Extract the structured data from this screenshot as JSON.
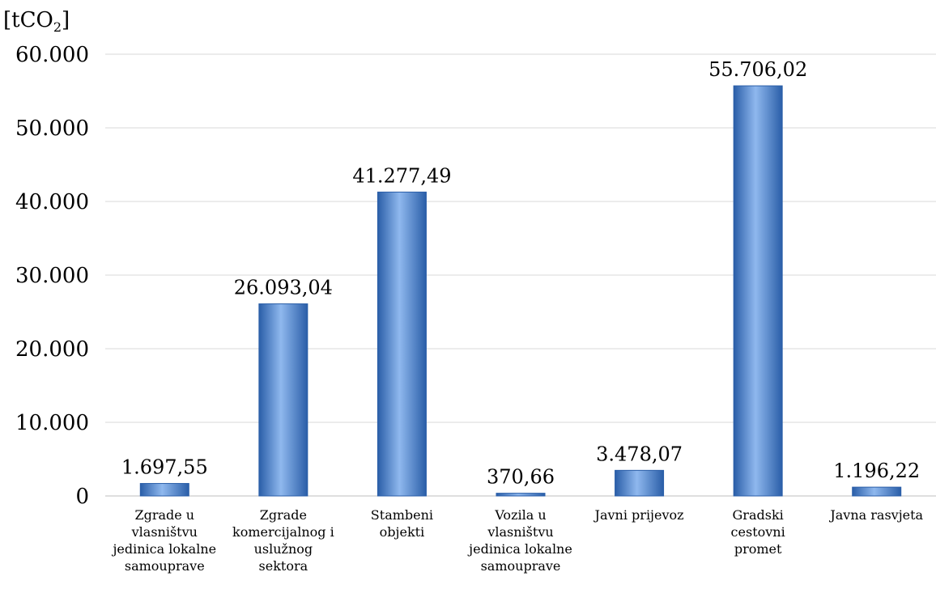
{
  "chart_data": {
    "type": "bar",
    "unit_label": {
      "prefix": "[tCO",
      "sub": "2",
      "suffix": "]"
    },
    "categories": [
      [
        "Zgrade u",
        "vlasništvu",
        "jedinica lokalne",
        "samouprave"
      ],
      [
        "Zgrade",
        "komercijalnog i",
        "uslužnog",
        "sektora"
      ],
      [
        "Stambeni",
        "objekti"
      ],
      [
        "Vozila u",
        "vlasništvu",
        "jedinica lokalne",
        "samouprave"
      ],
      [
        "Javni prijevoz"
      ],
      [
        "Gradski",
        "cestovni",
        "promet"
      ],
      [
        "Javna rasvjeta"
      ]
    ],
    "values": [
      1697.55,
      26093.04,
      41277.49,
      370.66,
      3478.07,
      55706.02,
      1196.22
    ],
    "data_labels": [
      "1.697,55",
      "26.093,04",
      "41.277,49",
      "370,66",
      "3.478,07",
      "55.706,02",
      "1.196,22"
    ],
    "yticks": [
      0,
      10000,
      20000,
      30000,
      40000,
      50000,
      60000
    ],
    "ytick_labels": [
      "0",
      "10.000",
      "20.000",
      "30.000",
      "40.000",
      "50.000",
      "60.000"
    ],
    "ylim": [
      0,
      60000
    ],
    "grid": true,
    "legend": "none",
    "colors": {
      "bar": "#4f86cf",
      "bar_light": "#8fb8ee",
      "bar_dark": "#2a5ea8",
      "grid": "#d9d9d9"
    }
  }
}
